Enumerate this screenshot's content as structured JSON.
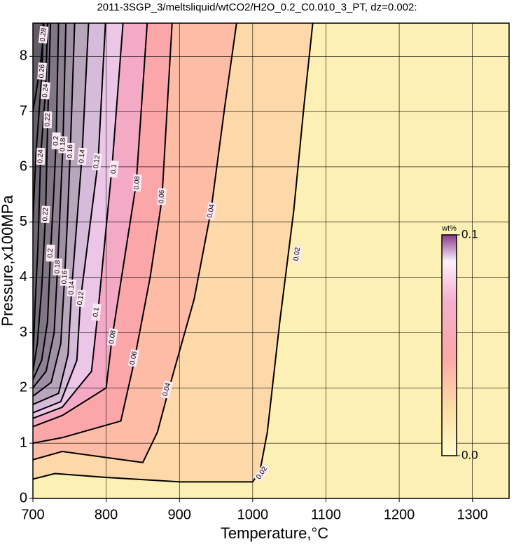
{
  "chart_data": {
    "type": "contour",
    "title": "2011-3SGP_3/meltsliquid/wtCO2/H2O_0.2_C0.010_3_PT, dz=0.002:",
    "x_label": "Temperature,°C",
    "y_label": "Pressure,x100MPa",
    "xlim": [
      700,
      1350
    ],
    "ylim": [
      0,
      8.6
    ],
    "xticks": [
      700,
      800,
      900,
      1000,
      1100,
      1200,
      1300
    ],
    "yticks": [
      0,
      1,
      2,
      3,
      4,
      5,
      6,
      7,
      8
    ],
    "grid": true,
    "background": "#fdf0b4",
    "colorbar": {
      "label": "wt%",
      "lim": [
        0,
        0.1
      ],
      "ticks": [
        {
          "value": 0.1,
          "label": "0.1"
        },
        {
          "value": 0,
          "label": "0.0"
        }
      ]
    },
    "series": [
      {
        "name": "0.02",
        "color": "#fdd8a8",
        "x": [
          700,
          730,
          800,
          900,
          1000,
          1010,
          1020,
          1037,
          1056,
          1070,
          1082
        ],
        "y": [
          0.35,
          0.45,
          0.38,
          0.3,
          0.3,
          0.5,
          1.2,
          3.2,
          5.2,
          7.1,
          8.6
        ],
        "label_x": [
          1012.5,
          1060.6
        ],
        "label_y": [
          0.46,
          4.42
        ]
      },
      {
        "name": "0.04",
        "color": "#fdbca6",
        "x": [
          700,
          740,
          850,
          870,
          886,
          920,
          943,
          962,
          978
        ],
        "y": [
          0.7,
          0.85,
          0.65,
          1.2,
          2.0,
          3.6,
          5.2,
          7.1,
          8.6
        ],
        "label_x": [
          882.7,
          943.3
        ],
        "label_y": [
          1.97,
          5.2
        ]
      },
      {
        "name": "0.06",
        "color": "#fba6a8",
        "x": [
          700,
          740,
          820,
          837,
          860,
          876,
          890
        ],
        "y": [
          1.0,
          1.1,
          1.4,
          2.4,
          4.0,
          5.4,
          8.6
        ],
        "label_x": [
          837.5,
          876
        ],
        "label_y": [
          2.54,
          5.46
        ]
      },
      {
        "name": "0.08",
        "color": "#f4aac4",
        "x": [
          700,
          740,
          800,
          808,
          841,
          856
        ],
        "y": [
          1.3,
          1.5,
          2.0,
          2.9,
          5.7,
          8.6
        ],
        "label_x": [
          808.7,
          842.3
        ],
        "label_y": [
          2.92,
          5.71
        ]
      },
      {
        "name": "0.1",
        "color": "#ebc6e6",
        "x": [
          700,
          740,
          780,
          789,
          808,
          823
        ],
        "y": [
          1.45,
          1.65,
          2.3,
          3.4,
          6.0,
          8.6
        ],
        "label_x": [
          786.5,
          810.6
        ],
        "label_y": [
          3.37,
          5.96
        ]
      },
      {
        "name": "0.12",
        "color": "#d6bcda",
        "x": [
          700,
          738,
          760,
          765,
          789,
          799
        ],
        "y": [
          1.55,
          1.75,
          2.5,
          3.6,
          6.1,
          8.6
        ],
        "label_x": [
          765.4,
          787.5
        ],
        "label_y": [
          3.62,
          6.09
        ]
      },
      {
        "name": "0.14",
        "color": "#b8a6bc",
        "x": [
          700,
          735,
          748,
          753,
          760,
          767,
          776
        ],
        "y": [
          1.7,
          1.9,
          2.6,
          3.81,
          5,
          6.19,
          8.6
        ],
        "label_x": [
          752.9,
          767.3
        ],
        "label_y": [
          3.81,
          6.19
        ]
      },
      {
        "name": "0.16",
        "color": "#9f90a6",
        "x": [
          700,
          725,
          738,
          743.3,
          747,
          751,
          757
        ],
        "y": [
          1.85,
          2.1,
          2.8,
          4.0,
          5,
          6.28,
          8.6
        ],
        "label_x": [
          743.3,
          751
        ],
        "label_y": [
          4.0,
          6.28
        ]
      },
      {
        "name": "0.18",
        "color": "#8e8292",
        "x": [
          700,
          718,
          729,
          733.7,
          737,
          741,
          745
        ],
        "y": [
          2.0,
          2.3,
          3.0,
          4.19,
          5.2,
          6.4,
          8.6
        ],
        "label_x": [
          733.7,
          741
        ],
        "label_y": [
          4.19,
          6.4
        ]
      },
      {
        "name": "0.2",
        "color": "#807686",
        "x": [
          700,
          712,
          720,
          724,
          728,
          731.7,
          735
        ],
        "y": [
          2.15,
          2.5,
          3.2,
          4.44,
          5.4,
          6.47,
          8.6
        ],
        "label_x": [
          724,
          731.7
        ],
        "label_y": [
          4.44,
          6.47
        ]
      },
      {
        "name": "0.22",
        "color": "#766d7a",
        "x": [
          700,
          706,
          712,
          717.3,
          720.2,
          724
        ],
        "y": [
          2.3,
          2.8,
          3.8,
          5.14,
          6.85,
          8.6
        ],
        "label_x": [
          717.3,
          720.2
        ],
        "label_y": [
          5.14,
          6.85
        ]
      },
      {
        "name": "0.24",
        "color": "#6e6672",
        "x": [
          700,
          703,
          707,
          710.6,
          717.3,
          720
        ],
        "y": [
          2.5,
          3.5,
          4.6,
          6.19,
          7.38,
          8.6
        ],
        "label_x": [
          710.6,
          717.3
        ],
        "label_y": [
          6.19,
          7.38
        ]
      },
      {
        "name": "0.26",
        "color": "#68606c",
        "x": [
          700,
          704,
          712.5,
          714
        ],
        "y": [
          5,
          6.2,
          7.73,
          8.6
        ],
        "label_x": [
          712.5
        ],
        "label_y": [
          7.73
        ]
      },
      {
        "name": "0.28",
        "color": "#625a66",
        "x": [
          700,
          710,
          714.4,
          715
        ],
        "y": [
          7,
          7.8,
          8.39,
          8.6
        ],
        "label_x": [
          714.4
        ],
        "label_y": [
          8.39
        ]
      }
    ]
  }
}
